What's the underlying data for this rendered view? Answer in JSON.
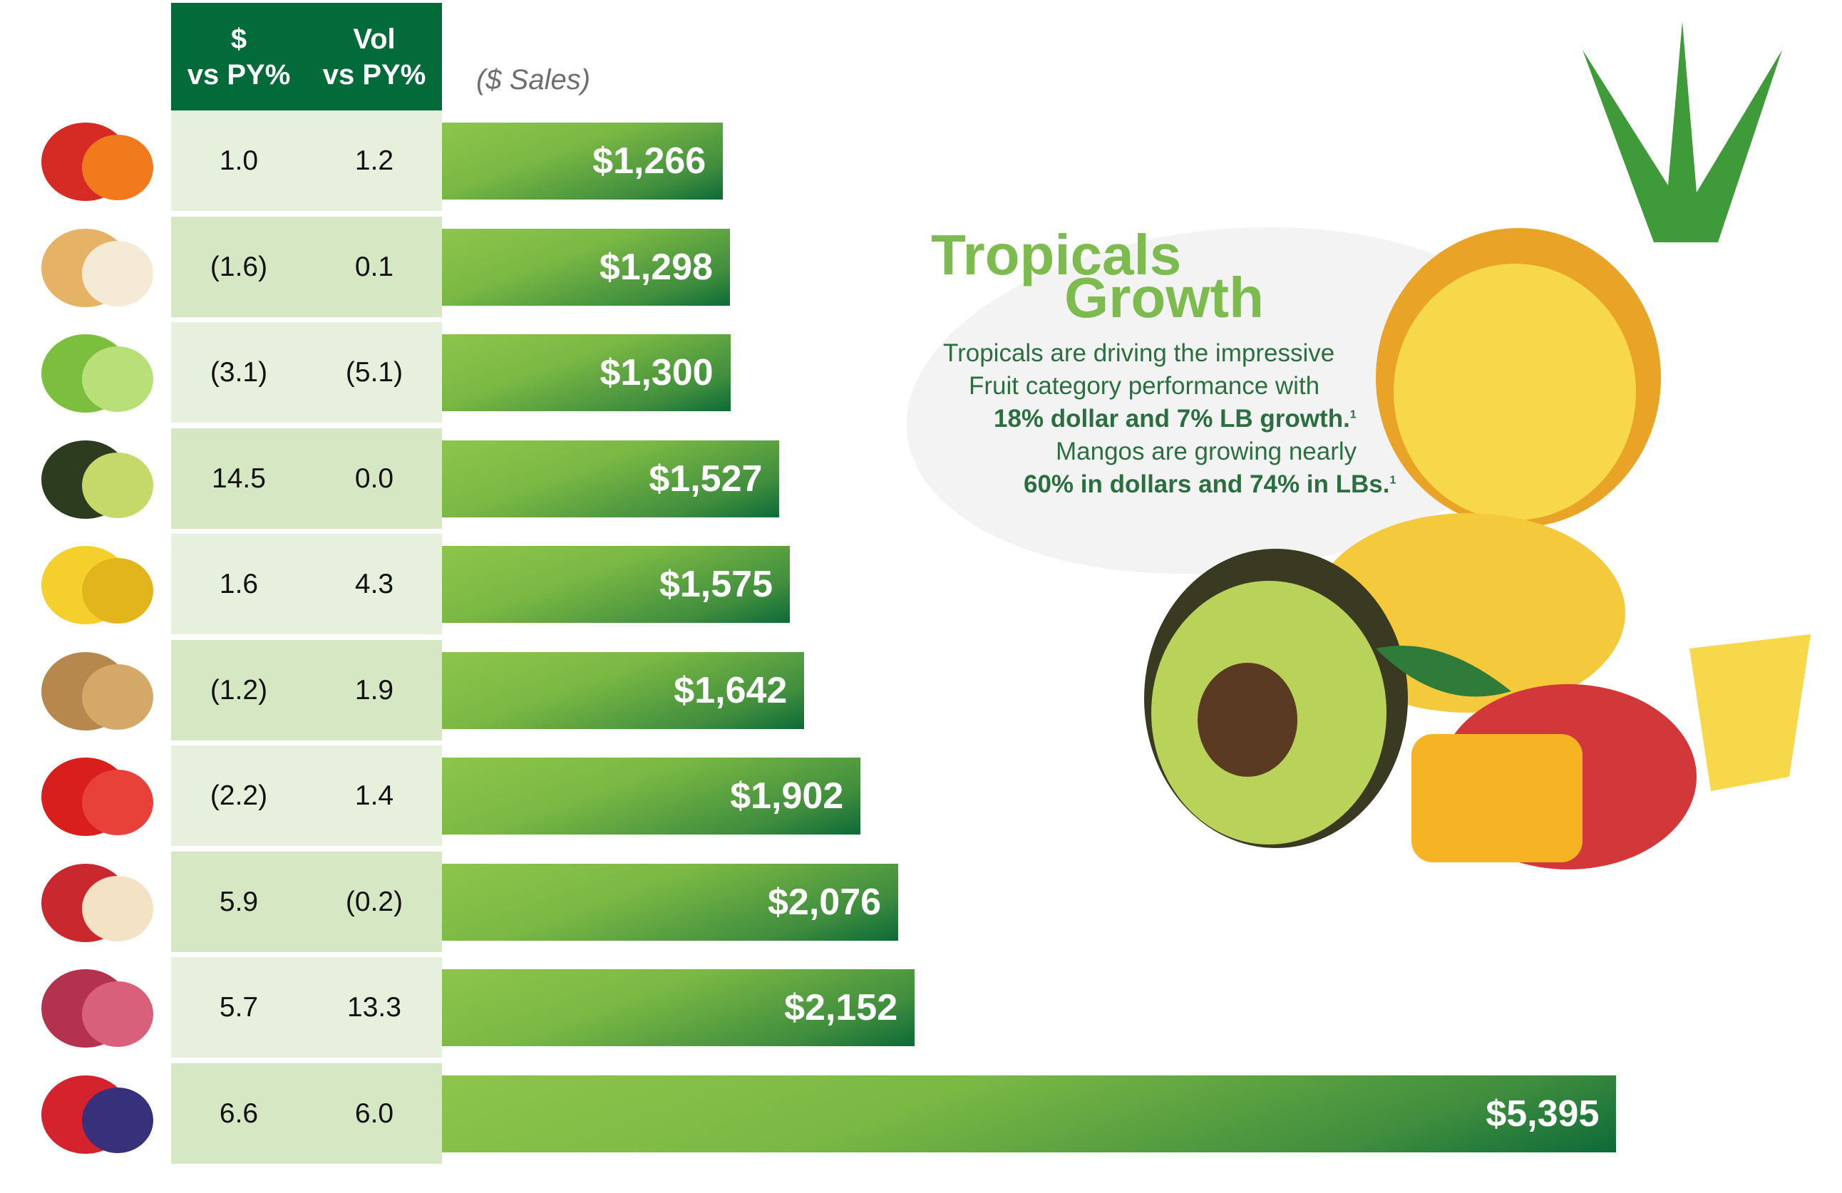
{
  "chart_data": {
    "type": "bar",
    "orientation": "horizontal",
    "unit_label": "($ Sales)",
    "table_headers": [
      {
        "line1": "$",
        "line2": "vs PY%"
      },
      {
        "line1": "Vol",
        "line2": "vs PY%"
      }
    ],
    "categories_icons": [
      "bell-peppers-icon",
      "onion-icon",
      "lettuce-icon",
      "avocado-icon",
      "banana-icon",
      "potato-icon",
      "tomato-icon",
      "apple-icon",
      "grapes-icon",
      "berries-icon"
    ],
    "rows": [
      {
        "dollar_vs_py": "1.0",
        "vol_vs_py": "1.2",
        "value": 1266,
        "label": "$1,266"
      },
      {
        "dollar_vs_py": "(1.6)",
        "vol_vs_py": "0.1",
        "value": 1298,
        "label": "$1,298"
      },
      {
        "dollar_vs_py": "(3.1)",
        "vol_vs_py": "(5.1)",
        "value": 1300,
        "label": "$1,300"
      },
      {
        "dollar_vs_py": "14.5",
        "vol_vs_py": "0.0",
        "value": 1527,
        "label": "$1,527"
      },
      {
        "dollar_vs_py": "1.6",
        "vol_vs_py": "4.3",
        "value": 1575,
        "label": "$1,575"
      },
      {
        "dollar_vs_py": "(1.2)",
        "vol_vs_py": "1.9",
        "value": 1642,
        "label": "$1,642"
      },
      {
        "dollar_vs_py": "(2.2)",
        "vol_vs_py": "1.4",
        "value": 1902,
        "label": "$1,902"
      },
      {
        "dollar_vs_py": "5.9",
        "vol_vs_py": "(0.2)",
        "value": 2076,
        "label": "$2,076"
      },
      {
        "dollar_vs_py": "5.7",
        "vol_vs_py": "13.3",
        "value": 2152,
        "label": "$2,152"
      },
      {
        "dollar_vs_py": "6.6",
        "vol_vs_py": "6.0",
        "value": 5395,
        "label": "$5,395"
      }
    ],
    "colors": {
      "header": "#036b3a",
      "row_light": "#e6f0dc",
      "row_dark": "#d6e7c4",
      "bar_light": "#8dc54c",
      "bar_dark": "#0c6a38"
    }
  },
  "callout": {
    "title_line1": "Tropicals",
    "title_line2": "Growth",
    "line1": "Tropicals are driving the impressive",
    "line2": "Fruit category performance with",
    "line3": "18% dollar and 7% LB growth.",
    "line4": "Mangos are growing nearly",
    "line5": "60% in dollars and 74% in LBs.",
    "footnote": "1",
    "title_color": "#7dbb4f",
    "text_color": "#2b6e3f"
  }
}
